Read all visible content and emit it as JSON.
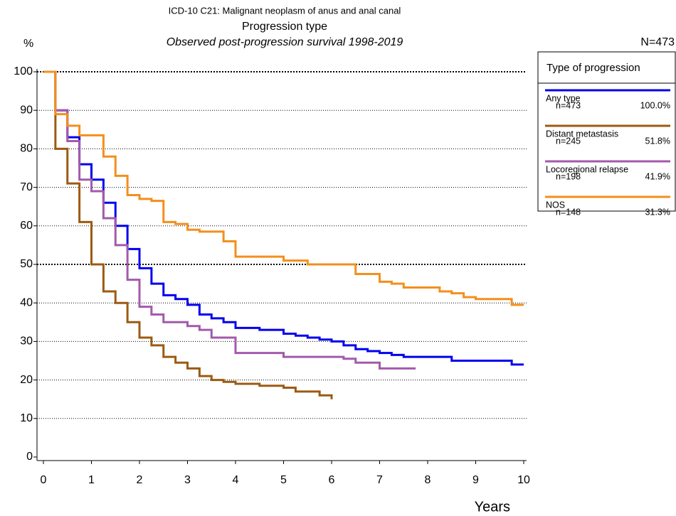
{
  "chart_data": {
    "type": "line",
    "step": true,
    "title": "ICD-10 C21: Malignant neoplasm of anus and anal canal",
    "subtitle": "Progression type",
    "subtitle2": "Observed post-progression survival 1998-2019",
    "total": "N=473",
    "y_label": "%",
    "x_label": "Years",
    "legend_title": "Type of progression",
    "grid": true,
    "xlim": [
      0,
      10
    ],
    "xticks": [
      0,
      1,
      2,
      3,
      4,
      5,
      6,
      7,
      8,
      9,
      10
    ],
    "ylim": [
      0,
      100
    ],
    "yticks": [
      0,
      10,
      20,
      30,
      40,
      50,
      60,
      70,
      80,
      90,
      100
    ],
    "x": [
      0,
      0.25,
      0.5,
      0.75,
      1,
      1.25,
      1.5,
      1.75,
      2,
      2.25,
      2.5,
      2.75,
      3,
      3.25,
      3.5,
      3.75,
      4,
      4.25,
      4.5,
      4.75,
      5,
      5.25,
      5.5,
      5.75,
      6,
      6.25,
      6.5,
      6.75,
      7,
      7.25,
      7.5,
      7.75,
      8,
      8.25,
      8.5,
      8.75,
      9,
      9.25,
      9.5,
      9.75,
      10
    ],
    "series": [
      {
        "name": "Any type",
        "n": "n=473",
        "share": "100.0%",
        "color": "#0000ee",
        "values": [
          100,
          90,
          83,
          76,
          72,
          66,
          60,
          54,
          49,
          45,
          42,
          41,
          39.5,
          37,
          36,
          35,
          33.5,
          33.5,
          33,
          33,
          32,
          31.5,
          31,
          30.5,
          30,
          29,
          28,
          27.5,
          27,
          26.5,
          26,
          26,
          26,
          26,
          25,
          25,
          25,
          25,
          25,
          24,
          24
        ]
      },
      {
        "name": "Distant metastasis",
        "n": "n=245",
        "share": "51.8%",
        "color": "#9c5a12",
        "values": [
          100,
          80,
          71,
          61,
          50,
          43,
          40,
          35,
          31,
          29,
          26,
          24.5,
          23,
          21,
          20,
          19.5,
          19,
          19,
          18.5,
          18.5,
          18,
          17,
          17,
          16,
          15,
          null,
          null,
          null,
          null,
          null,
          null,
          null,
          null,
          null,
          null,
          null,
          null,
          null,
          null,
          null,
          null
        ]
      },
      {
        "name": "Locoregional relapse",
        "n": "n=198",
        "share": "41.9%",
        "color": "#a35aab",
        "values": [
          100,
          90,
          82,
          72,
          69,
          62,
          55,
          46,
          39,
          37,
          35,
          35,
          34,
          33,
          31,
          31,
          27,
          27,
          27,
          27,
          26,
          26,
          26,
          26,
          26,
          25.5,
          24.5,
          24.5,
          23,
          23,
          23,
          23,
          null,
          null,
          null,
          null,
          null,
          null,
          null,
          null,
          null
        ]
      },
      {
        "name": "NOS",
        "n": "n=148",
        "share": "31.3%",
        "color": "#f38f1c",
        "values": [
          100,
          89,
          86,
          83.5,
          83.5,
          78,
          73,
          68,
          67,
          66.5,
          61,
          60.5,
          59,
          58.5,
          58.5,
          56,
          52,
          52,
          52,
          52,
          51,
          51,
          50,
          50,
          50,
          50,
          47.5,
          47.5,
          45.5,
          45,
          44,
          44,
          44,
          43,
          42.5,
          41.5,
          41,
          41,
          41,
          39.5,
          39.5
        ]
      }
    ]
  }
}
